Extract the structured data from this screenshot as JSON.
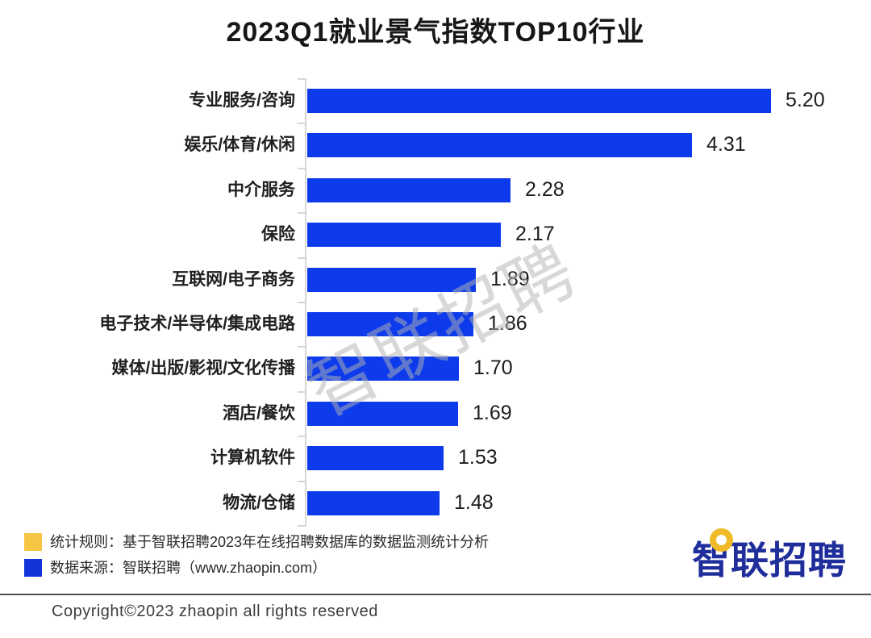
{
  "title": "2023Q1就业景气指数TOP10行业",
  "chart_data": {
    "type": "bar",
    "orientation": "horizontal",
    "title": "2023Q1就业景气指数TOP10行业",
    "categories": [
      "专业服务/咨询",
      "娱乐/体育/休闲",
      "中介服务",
      "保险",
      "互联网/电子商务",
      "电子技术/半导体/集成电路",
      "媒体/出版/影视/文化传播",
      "酒店/餐饮",
      "计算机软件",
      "物流/仓储"
    ],
    "values": [
      5.2,
      4.31,
      2.28,
      2.17,
      1.89,
      1.86,
      1.7,
      1.69,
      1.53,
      1.48
    ],
    "value_labels": [
      "5.20",
      "4.31",
      "2.28",
      "2.17",
      "1.89",
      "1.86",
      "1.70",
      "1.69",
      "1.53",
      "1.48"
    ],
    "xlim": [
      0,
      5.2
    ],
    "grid": false,
    "legend": "none",
    "bar_color": "#0d3beb",
    "axis_color": "#d6d6d6"
  },
  "watermark_text": "智联招聘",
  "colors": {
    "bar_blue": "#0d3beb",
    "note_yellow": "#f6c544",
    "note_blue": "#1334d8",
    "logo_blue": "#202e9c",
    "logo_yellow": "#f0ba28"
  },
  "footer": {
    "notes": [
      {
        "label": "统计规则：基于智联招聘2023年在线招聘数据库的数据监测统计分析",
        "swatch": "#f6c544"
      },
      {
        "label": "数据来源：智联招聘（www.zhaopin.com）",
        "swatch": "#1334d8"
      }
    ],
    "logo_text": "智联招聘",
    "copyright": "Copyright©2023 zhaopin all rights reserved"
  }
}
